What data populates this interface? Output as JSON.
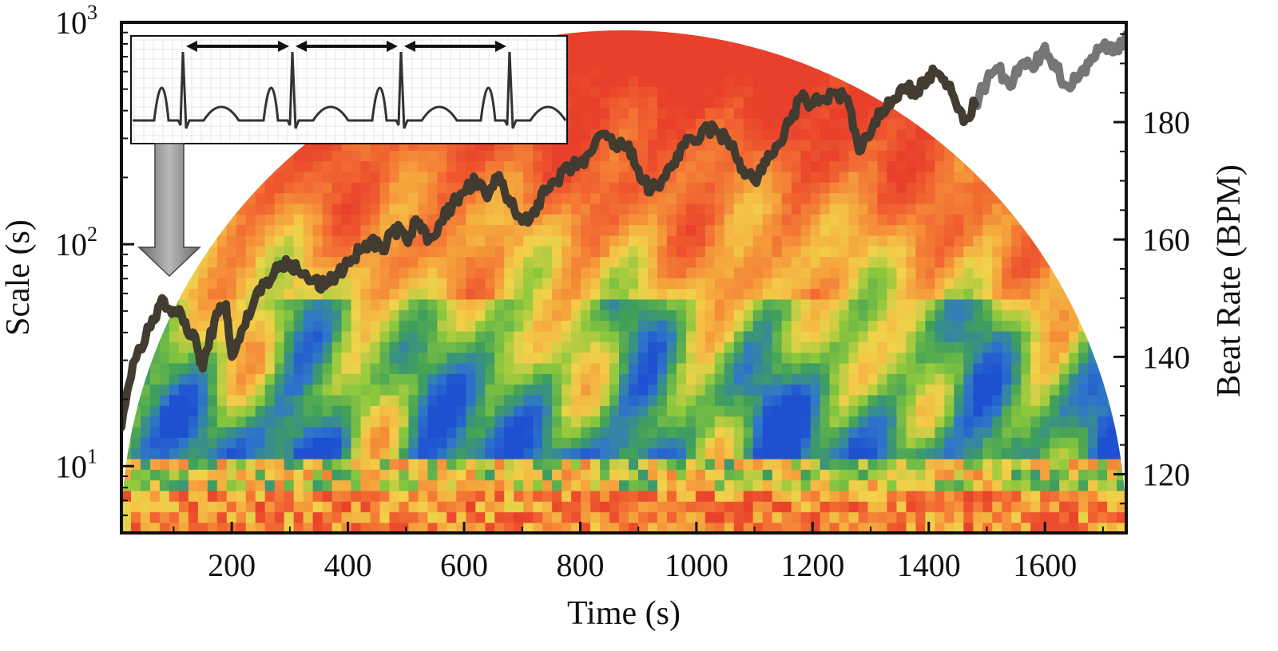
{
  "chart_data": {
    "type": "heatmap",
    "title": "",
    "xlabel": "Time (s)",
    "ylabel": "Scale (s)",
    "y2label": "Beat Rate (BPM)",
    "xlim": [
      10,
      1740
    ],
    "ylim": [
      5,
      1000
    ],
    "yscale": "log",
    "y2lim": [
      110,
      197
    ],
    "xticks": [
      "200",
      "400",
      "600",
      "800",
      "1000",
      "1200",
      "1400",
      "1600"
    ],
    "yticks": [
      {
        "base": "10",
        "exp": "1"
      },
      {
        "base": "10",
        "exp": "2"
      },
      {
        "base": "10",
        "exp": "3"
      }
    ],
    "y2ticks": [
      "120",
      "140",
      "160",
      "180"
    ],
    "grid": false,
    "colormap": [
      "#1e50d2",
      "#2f78c8",
      "#3fa05a",
      "#8cc83c",
      "#f2d24a",
      "#f5a03c",
      "#f26a32",
      "#e8402a"
    ],
    "heart_rate_series": {
      "name": "",
      "color": "#555555",
      "x": [
        10,
        30,
        60,
        80,
        100,
        120,
        140,
        150,
        170,
        190,
        200,
        220,
        240,
        260,
        280,
        300,
        320,
        340,
        360,
        380,
        400,
        420,
        440,
        460,
        480,
        500,
        520,
        540,
        560,
        580,
        600,
        620,
        640,
        660,
        680,
        700,
        720,
        740,
        760,
        780,
        800,
        820,
        840,
        860,
        880,
        900,
        920,
        940,
        960,
        980,
        1000,
        1020,
        1040,
        1060,
        1080,
        1100,
        1120,
        1140,
        1160,
        1180,
        1200,
        1220,
        1240,
        1260,
        1280,
        1300,
        1320,
        1340,
        1360,
        1380,
        1400,
        1420,
        1440,
        1460,
        1480,
        1500,
        1520,
        1540,
        1560,
        1580,
        1600,
        1620,
        1640,
        1660,
        1680,
        1700,
        1720,
        1740
      ],
      "y": [
        128,
        139,
        145,
        150,
        148,
        146,
        142,
        138,
        146,
        149,
        140,
        145,
        150,
        153,
        155,
        156,
        154,
        153,
        152,
        154,
        156,
        158,
        160,
        158,
        162,
        160,
        163,
        160,
        163,
        166,
        168,
        170,
        167,
        171,
        166,
        163,
        165,
        168,
        170,
        172,
        173,
        175,
        178,
        176,
        176,
        172,
        168,
        170,
        173,
        176,
        177,
        179,
        178,
        176,
        172,
        170,
        173,
        176,
        180,
        184,
        183,
        184,
        185,
        184,
        175,
        178,
        182,
        184,
        186,
        185,
        188,
        188,
        185,
        180,
        183,
        187,
        189,
        186,
        190,
        189,
        193,
        189,
        186,
        188,
        191,
        193,
        192,
        195
      ],
      "y_axis": "right",
      "highlighted_range": [
        10,
        1480
      ]
    }
  }
}
